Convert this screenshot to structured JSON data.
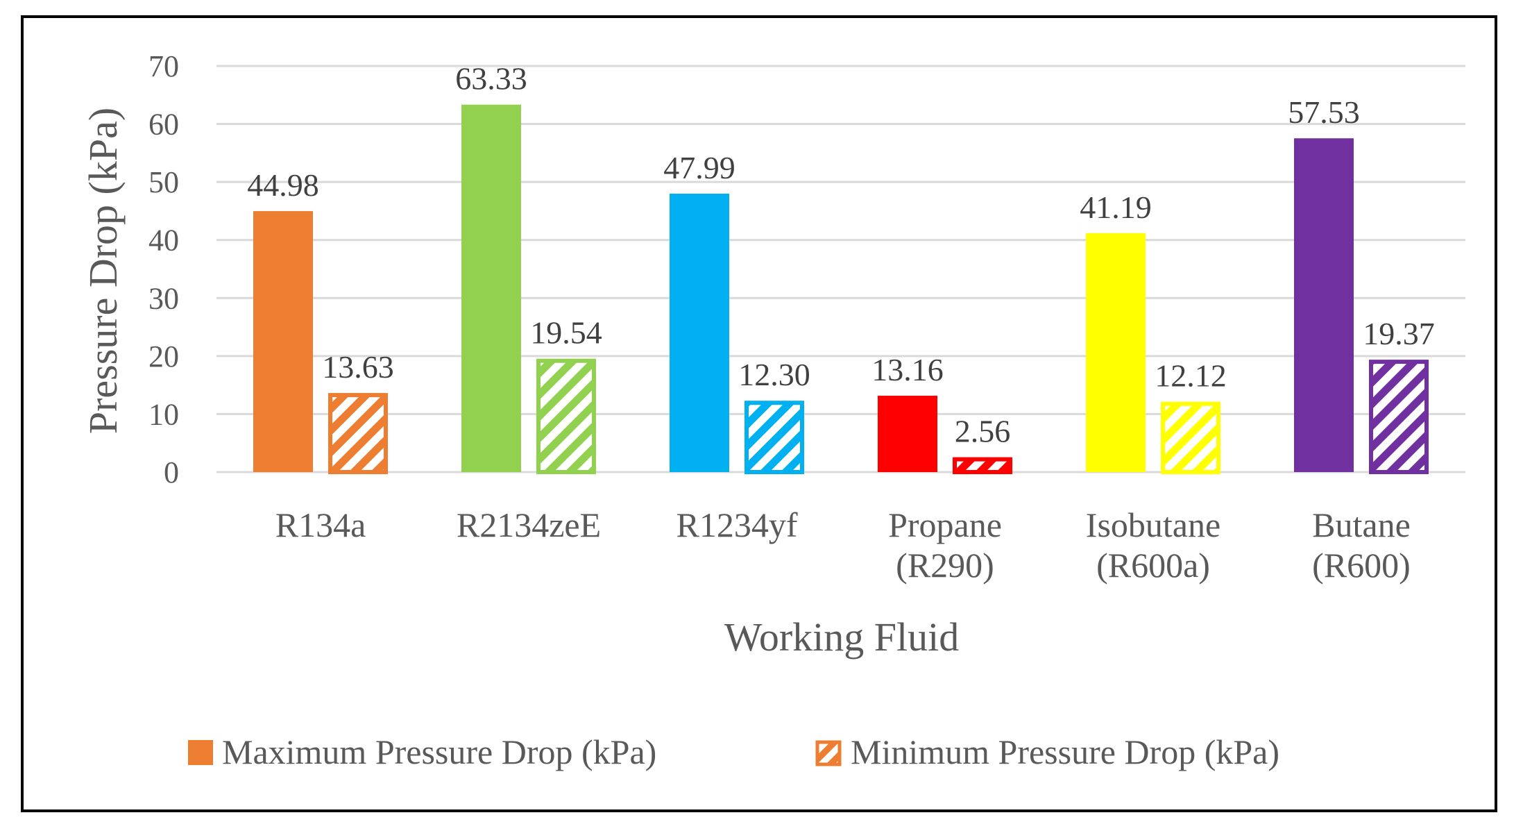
{
  "chart_data": {
    "type": "bar",
    "title": "",
    "xlabel": "Working Fluid",
    "ylabel": "Pressure Drop (kPa)",
    "ylim": [
      0,
      70
    ],
    "yticks": [
      0,
      10,
      20,
      30,
      40,
      50,
      60,
      70
    ],
    "grid": true,
    "legend_position": "bottom",
    "categories": [
      [
        "R134a"
      ],
      [
        "R2134zeE"
      ],
      [
        "R1234yf"
      ],
      [
        "Propane",
        "(R290)"
      ],
      [
        "Isobutane",
        "(R600a)"
      ],
      [
        "Butane",
        "(R600)"
      ]
    ],
    "category_colors": [
      "#ED7D31",
      "#92D050",
      "#00B0F0",
      "#FF0000",
      "#FFFF00",
      "#7030A0"
    ],
    "series": [
      {
        "name": "Maximum Pressure Drop (kPa)",
        "style": "solid",
        "values": [
          44.98,
          63.33,
          47.99,
          13.16,
          41.19,
          57.53
        ],
        "labels": [
          "44.98",
          "63.33",
          "47.99",
          "13.16",
          "41.19",
          "57.53"
        ]
      },
      {
        "name": "Minimum Pressure Drop (kPa)",
        "style": "hatched",
        "values": [
          13.63,
          19.54,
          12.3,
          2.56,
          12.12,
          19.37
        ],
        "labels": [
          "13.63",
          "19.54",
          "12.30",
          "2.56",
          "12.12",
          "19.37"
        ]
      }
    ],
    "legend_color": "#ED7D31"
  }
}
